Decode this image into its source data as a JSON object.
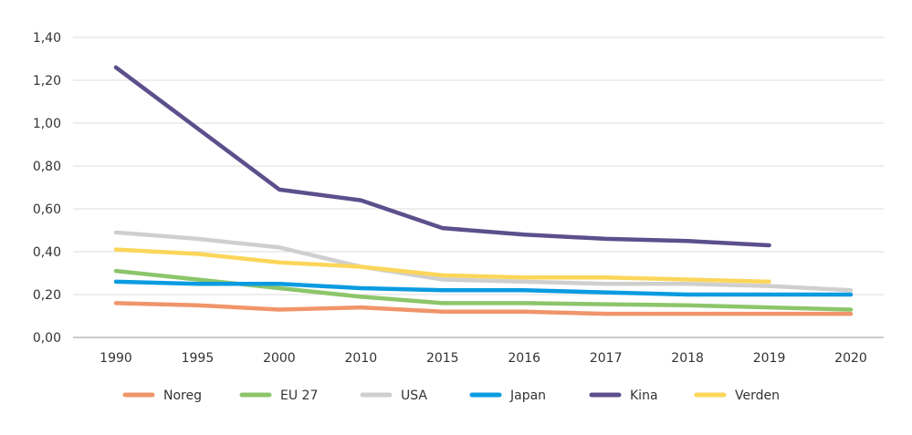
{
  "chart_data": {
    "type": "line",
    "categories": [
      "1990",
      "1995",
      "2000",
      "2010",
      "2015",
      "2016",
      "2017",
      "2018",
      "2019",
      "2020"
    ],
    "ylim": [
      0,
      1.4
    ],
    "yticks": [
      "0,00",
      "0,20",
      "0,40",
      "0,60",
      "0,80",
      "1,00",
      "1,20",
      "1,40"
    ],
    "grid": true,
    "legend_position": "bottom",
    "series": [
      {
        "name": "Noreg",
        "color": "#f0956a",
        "values": [
          0.16,
          0.15,
          0.13,
          0.14,
          0.12,
          0.12,
          0.11,
          0.11,
          0.11,
          0.11
        ]
      },
      {
        "name": "EU 27",
        "color": "#8cc56a",
        "values": [
          0.31,
          0.27,
          0.23,
          0.19,
          0.16,
          0.16,
          0.155,
          0.15,
          0.14,
          0.13
        ]
      },
      {
        "name": "USA",
        "color": "#cfcfcf",
        "values": [
          0.49,
          0.46,
          0.42,
          0.33,
          0.27,
          0.26,
          0.25,
          0.25,
          0.24,
          0.22
        ]
      },
      {
        "name": "Japan",
        "color": "#0a9be0",
        "values": [
          0.26,
          0.25,
          0.25,
          0.23,
          0.22,
          0.22,
          0.21,
          0.2,
          0.2,
          0.2
        ]
      },
      {
        "name": "Kina",
        "color": "#5c4f8c",
        "values": [
          1.26,
          0.975,
          0.69,
          0.64,
          0.51,
          0.48,
          0.46,
          0.45,
          0.43,
          null
        ]
      },
      {
        "name": "Verden",
        "color": "#fcd65a",
        "values": [
          0.41,
          0.39,
          0.35,
          0.33,
          0.29,
          0.28,
          0.28,
          0.27,
          0.26,
          null
        ]
      }
    ]
  }
}
